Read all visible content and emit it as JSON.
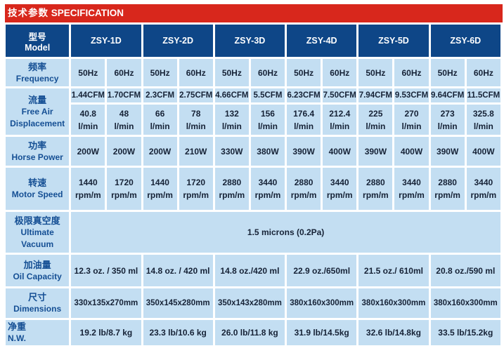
{
  "title": {
    "zh": "技术参数",
    "en": "SPECIFICATION"
  },
  "colors": {
    "title_bar_red": "#D8271C",
    "header_navy": "#0E4687",
    "cell_light_blue": "#C3DEF2",
    "label_text_blue": "#154F94",
    "data_text": "#162236"
  },
  "table": {
    "model_header": {
      "zh": "型号",
      "en": "Model"
    },
    "models": [
      "ZSY-1D",
      "ZSY-2D",
      "ZSY-3D",
      "ZSY-4D",
      "ZSY-5D",
      "ZSY-6D"
    ],
    "rows": {
      "frequency": {
        "label_zh": "频率",
        "label_en": "Frequency",
        "values": [
          "50Hz",
          "60Hz",
          "50Hz",
          "60Hz",
          "50Hz",
          "60Hz",
          "50Hz",
          "60Hz",
          "50Hz",
          "60Hz",
          "50Hz",
          "60Hz"
        ]
      },
      "flow": {
        "label_zh": "流量",
        "label_en": "Free Air Displacement",
        "cfm": [
          "1.44CFM",
          "1.70CFM",
          "2.3CFM",
          "2.75CFM",
          "4.66CFM",
          "5.5CFM",
          "6.23CFM",
          "7.50CFM",
          "7.94CFM",
          "9.53CFM",
          "9.64CFM",
          "11.5CFM"
        ],
        "lmin": [
          "40.8",
          "48",
          "66",
          "78",
          "132",
          "156",
          "176.4",
          "212.4",
          "225",
          "270",
          "273",
          "325.8"
        ],
        "lmin_unit": "l/min"
      },
      "horse_power": {
        "label_zh": "功率",
        "label_en": "Horse Power",
        "values": [
          "200W",
          "200W",
          "200W",
          "210W",
          "330W",
          "380W",
          "390W",
          "400W",
          "390W",
          "400W",
          "390W",
          "400W"
        ]
      },
      "motor_speed": {
        "label_zh": "转速",
        "label_en": "Motor Speed",
        "values": [
          "1440",
          "1720",
          "1440",
          "1720",
          "2880",
          "3440",
          "2880",
          "3440",
          "2880",
          "3440",
          "2880",
          "3440"
        ],
        "unit": "rpm/m"
      },
      "ultimate_vacuum": {
        "label_zh": "极限真空度",
        "label_en": "Ultimate Vacuum",
        "value": "1.5 microns (0.2Pa)"
      },
      "oil_capacity": {
        "label_zh": "加油量",
        "label_en": "Oil Capacity",
        "values": [
          "12.3 oz. / 350 ml",
          "14.8 oz. / 420 ml",
          "14.8 oz./420 ml",
          "22.9 oz./650ml",
          "21.5 oz./ 610ml",
          "20.8 oz./590 ml"
        ]
      },
      "dimensions": {
        "label_zh": "尺寸",
        "label_en": "Dimensions",
        "values": [
          "330x135x270mm",
          "350x145x280mm",
          "350x143x280mm",
          "380x160x300mm",
          "380x160x300mm",
          "380x160x300mm"
        ]
      },
      "net_weight": {
        "label_zh": "净重",
        "label_en": "N.W.",
        "values": [
          "19.2 lb/8.7 kg",
          "23.3 lb/10.6 kg",
          "26.0 lb/11.8 kg",
          "31.9 lb/14.5kg",
          "32.6 lb/14.8kg",
          "33.5 lb/15.2kg"
        ]
      }
    }
  }
}
